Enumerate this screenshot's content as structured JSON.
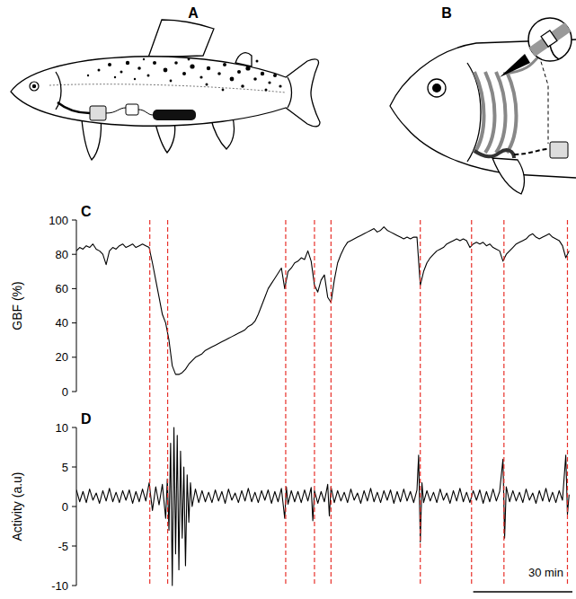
{
  "figure_panels": [
    {
      "label": "A"
    },
    {
      "label": "B"
    }
  ],
  "chart_data": [
    {
      "type": "line",
      "panel_label": "C",
      "y_label": "GBF (%)",
      "color": "#000000",
      "tick_labels": "y",
      "xlim": [
        0,
        150
      ],
      "ylim": [
        0,
        100
      ],
      "yticks": [
        0,
        20,
        40,
        60,
        80,
        100
      ],
      "events": [
        22.2,
        27.6,
        63.3,
        72,
        77,
        104,
        119.5,
        129.3,
        148.5
      ],
      "x": [
        0,
        1,
        2,
        3,
        4,
        5,
        6,
        7,
        8,
        9,
        10,
        11,
        12,
        13,
        14,
        15,
        16,
        17,
        18,
        19,
        20,
        21,
        22,
        23,
        24,
        25,
        26,
        27,
        28,
        29,
        30,
        31,
        32,
        33,
        34,
        35,
        36,
        37,
        38,
        39,
        40,
        41,
        42,
        43,
        44,
        45,
        46,
        47,
        48,
        49,
        50,
        51,
        52,
        53,
        54,
        55,
        56,
        57,
        58,
        59,
        60,
        61,
        62,
        63,
        64,
        65,
        66,
        67,
        68,
        69,
        70,
        71,
        72,
        73,
        74,
        75,
        76,
        77,
        78,
        79,
        80,
        81,
        82,
        83,
        84,
        85,
        86,
        87,
        88,
        89,
        90,
        91,
        92,
        93,
        94,
        95,
        96,
        97,
        98,
        99,
        100,
        101,
        102,
        103,
        104,
        105,
        106,
        107,
        108,
        109,
        110,
        111,
        112,
        113,
        114,
        115,
        116,
        117,
        118,
        119,
        120,
        121,
        122,
        123,
        124,
        125,
        126,
        127,
        128,
        129,
        130,
        131,
        132,
        133,
        134,
        135,
        136,
        137,
        138,
        139,
        140,
        141,
        142,
        143,
        144,
        145,
        146,
        147,
        148,
        149
      ],
      "values": [
        82,
        84,
        83,
        85,
        84,
        86,
        83,
        82,
        80,
        74,
        82,
        84,
        83,
        85,
        86,
        84,
        85,
        86,
        84,
        85,
        86,
        85,
        84,
        75,
        65,
        55,
        45,
        40,
        30,
        15,
        10,
        10,
        11,
        13,
        16,
        18,
        20,
        21,
        22,
        24,
        25,
        26,
        27,
        28,
        29,
        30,
        31,
        32,
        33,
        34,
        35,
        36,
        38,
        39,
        41,
        45,
        50,
        55,
        60,
        63,
        66,
        69,
        72,
        60,
        70,
        72,
        75,
        76,
        78,
        77,
        82,
        76,
        62,
        58,
        65,
        68,
        55,
        52,
        65,
        75,
        80,
        84,
        87,
        88,
        89,
        90,
        91,
        92,
        93,
        94,
        95,
        93,
        94,
        96,
        94,
        93,
        92,
        91,
        90,
        89,
        90,
        89,
        90,
        90,
        62,
        70,
        75,
        78,
        80,
        82,
        83,
        84,
        86,
        87,
        88,
        89,
        88,
        89,
        88,
        84,
        86,
        87,
        86,
        87,
        85,
        86,
        84,
        83,
        82,
        76,
        80,
        82,
        84,
        86,
        87,
        88,
        89,
        91,
        92,
        90,
        89,
        90,
        91,
        92,
        90,
        89,
        88,
        85,
        78,
        82
      ]
    },
    {
      "type": "line",
      "panel_label": "D",
      "y_label": "Activity (a.u)",
      "color": "#000000",
      "tick_labels": "y",
      "xlim": [
        0,
        150
      ],
      "ylim": [
        -10,
        10
      ],
      "yticks": [
        -10,
        -5,
        0,
        5,
        10
      ],
      "scale_bar": {
        "value": 30,
        "label": "30 min"
      },
      "x": [
        0,
        1,
        2,
        3,
        4,
        5,
        6,
        7,
        8,
        9,
        10,
        11,
        12,
        13,
        14,
        15,
        16,
        17,
        18,
        19,
        20,
        21,
        22,
        23,
        24,
        25,
        26,
        27,
        27.5,
        28,
        28.5,
        29,
        29.5,
        30,
        30.5,
        31,
        31.5,
        32,
        32.5,
        33,
        33.5,
        34,
        34.5,
        35,
        36,
        37,
        38,
        39,
        40,
        41,
        42,
        43,
        44,
        45,
        46,
        47,
        48,
        49,
        50,
        51,
        52,
        53,
        54,
        55,
        56,
        57,
        58,
        59,
        60,
        61,
        62,
        63,
        63.5,
        64,
        65,
        66,
        67,
        68,
        69,
        70,
        71,
        71.5,
        72,
        73,
        74,
        75,
        76,
        76.5,
        77,
        78,
        79,
        80,
        81,
        82,
        83,
        84,
        85,
        86,
        87,
        88,
        89,
        90,
        91,
        92,
        93,
        94,
        95,
        96,
        97,
        98,
        99,
        100,
        101,
        102,
        103,
        103.5,
        104,
        104.5,
        105,
        106,
        107,
        108,
        109,
        110,
        111,
        112,
        113,
        114,
        115,
        116,
        117,
        118,
        119,
        120,
        121,
        122,
        123,
        124,
        125,
        126,
        127,
        128,
        129,
        129.5,
        130,
        131,
        132,
        133,
        134,
        135,
        136,
        137,
        138,
        139,
        140,
        141,
        142,
        143,
        144,
        145,
        146,
        147,
        148,
        148.5,
        149
      ],
      "values": [
        2.1,
        0.6,
        1.9,
        0.5,
        2.2,
        0.8,
        1.7,
        0.4,
        2.0,
        0.7,
        2.3,
        0.6,
        1.8,
        0.5,
        2.0,
        0.8,
        2.1,
        0.4,
        1.9,
        0.6,
        2.2,
        0.7,
        3.0,
        -0.5,
        2.5,
        0.2,
        2.8,
        -1.5,
        3.5,
        -3,
        8,
        -10,
        10,
        -6,
        9,
        -8,
        7,
        -4,
        5,
        -7.5,
        4,
        -2,
        3,
        0,
        2.2,
        0.5,
        2.0,
        0.6,
        1.8,
        0.5,
        2.1,
        0.7,
        1.9,
        0.4,
        2.2,
        0.8,
        1.7,
        0.5,
        2.0,
        0.7,
        2.3,
        0.6,
        1.8,
        0.5,
        2.0,
        0.8,
        2.1,
        0.4,
        1.9,
        0.6,
        2.3,
        -1.5,
        2.5,
        0.3,
        2.0,
        0.6,
        1.9,
        0.5,
        2.1,
        0.7,
        2.4,
        -1.8,
        2.0,
        0.4,
        1.9,
        0.6,
        2.8,
        -1.2,
        2.5,
        0.5,
        2.0,
        0.7,
        1.8,
        0.5,
        2.2,
        0.8,
        1.7,
        0.4,
        2.0,
        0.7,
        2.3,
        0.6,
        1.8,
        0.5,
        2.0,
        0.8,
        2.1,
        0.4,
        1.9,
        0.6,
        2.2,
        0.7,
        1.9,
        0.5,
        2.1,
        6.5,
        -4.5,
        3.0,
        0.5,
        2.0,
        0.7,
        1.8,
        0.5,
        2.2,
        0.8,
        1.7,
        0.4,
        2.0,
        0.7,
        2.3,
        0.6,
        1.8,
        0.5,
        2.0,
        0.8,
        2.1,
        0.4,
        1.9,
        0.6,
        2.2,
        0.7,
        1.9,
        6.0,
        -4.0,
        2.5,
        0.6,
        2.0,
        0.7,
        1.8,
        0.5,
        2.2,
        0.8,
        1.7,
        0.4,
        2.0,
        0.7,
        2.3,
        0.6,
        1.8,
        0.5,
        2.0,
        0.8,
        6.5,
        -1.0,
        1.5
      ]
    }
  ]
}
